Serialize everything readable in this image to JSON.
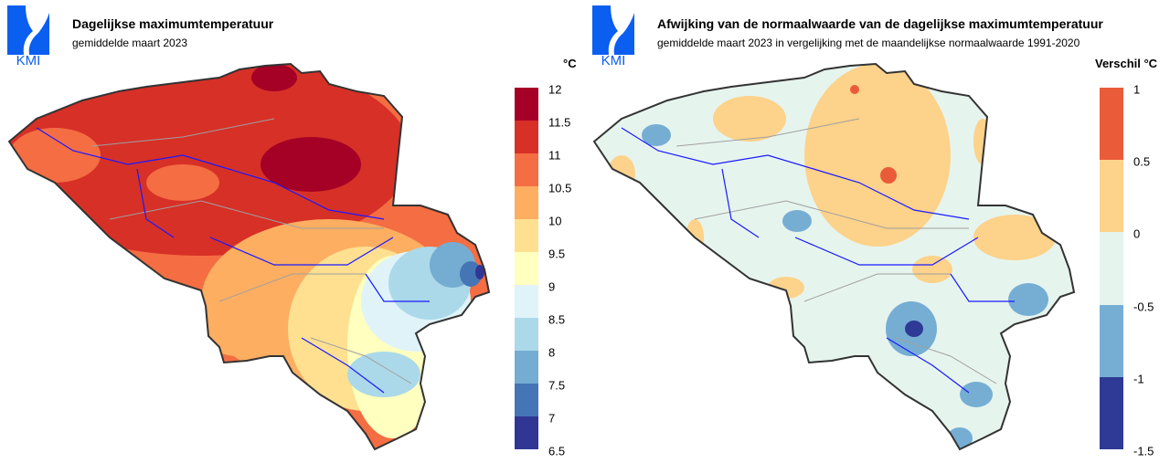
{
  "left": {
    "logo_text": "KMI",
    "title": "Dagelijkse maximumtemperatuur",
    "subtitle": "gemiddelde maart 2023",
    "unit": "°C",
    "legend_labels": [
      "12",
      "11.5",
      "11",
      "10.5",
      "10",
      "9.5",
      "9",
      "8.5",
      "8",
      "7.5",
      "7",
      "6.5"
    ],
    "legend_colors": [
      "#a50026",
      "#d73027",
      "#f46d43",
      "#fdae61",
      "#fee090",
      "#ffffbf",
      "#e0f3f8",
      "#abd9e9",
      "#74add1",
      "#4575b4",
      "#313695"
    ]
  },
  "right": {
    "logo_text": "KMI",
    "title": "Afwijking van de normaalwaarde van de dagelijkse maximumtemperatuur",
    "subtitle": "gemiddelde maart 2023 in vergelijking met de maandelijkse normaalwaarde 1991-2020",
    "unit": "Verschil °C",
    "legend_labels": [
      "1",
      "0.5",
      "0",
      "-0.5",
      "-1",
      "-1.5"
    ],
    "legend_colors": [
      "#ea5b3a",
      "#fdd28a",
      "#e6f4ee",
      "#76aed3",
      "#2e3a95"
    ]
  },
  "colors": {
    "logo": "#0a5ef0",
    "river": "#1a1aff",
    "border": "#a0a0a0",
    "outline": "#333333"
  }
}
